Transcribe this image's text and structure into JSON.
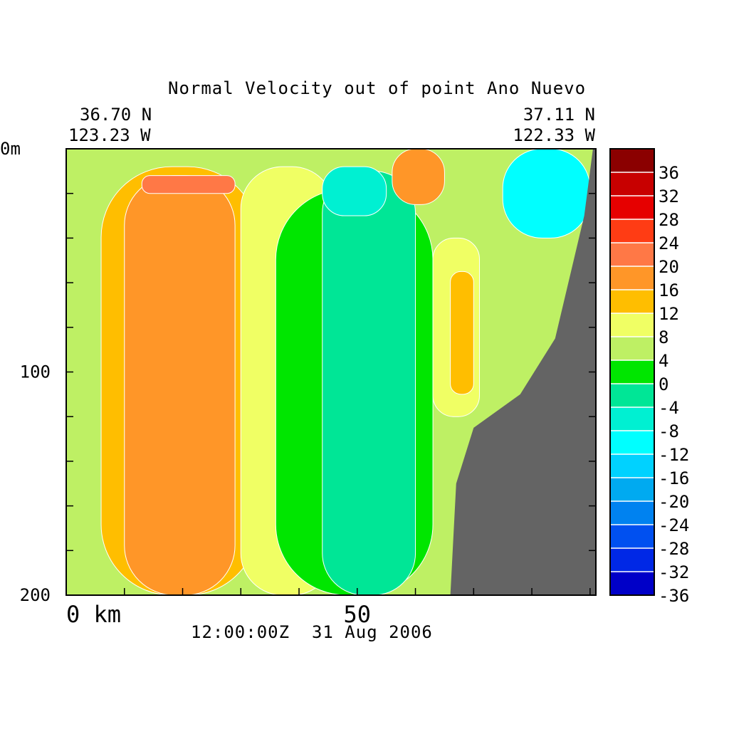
{
  "chart_data": {
    "type": "heatmap",
    "title": "Normal Velocity out of point Ano Nuevo",
    "endpoints": {
      "left": {
        "lat": "36.70 N",
        "lon": "123.23 W"
      },
      "right": {
        "lat": "37.11 N",
        "lon": "122.33 W"
      }
    },
    "timestamp": "12:00:00Z  31 Aug 2006",
    "x_axis": {
      "range": [
        0,
        91
      ],
      "ticks": [
        {
          "value": 0,
          "label": "0 km"
        },
        {
          "value": 50,
          "label": "50"
        }
      ],
      "minor_tick_step": 10
    },
    "y_axis": {
      "range": [
        0,
        200
      ],
      "inverted": true,
      "ticks": [
        {
          "value": 0,
          "label": "0m"
        },
        {
          "value": 100,
          "label": "100"
        },
        {
          "value": 200,
          "label": "200"
        }
      ],
      "minor_tick_step": 20
    },
    "colorbar": {
      "levels": [
        "36",
        "32",
        "28",
        "24",
        "20",
        "16",
        "12",
        "8",
        "4",
        "0",
        "-4",
        "-8",
        "-12",
        "-16",
        "-20",
        "-24",
        "-28",
        "-32",
        "-36"
      ],
      "colors": [
        "#8b0000",
        "#c80000",
        "#e60000",
        "#ff3c14",
        "#ff7846",
        "#ff9628",
        "#ffbe00",
        "#f0ff64",
        "#bef064",
        "#00e600",
        "#00e696",
        "#00f0d2",
        "#00ffff",
        "#00d2ff",
        "#00aaf0",
        "#0082f0",
        "#0050f0",
        "#0028e6",
        "#0000c8"
      ]
    },
    "bathymetry_color": "#646464",
    "velocity_fields": [
      {
        "level": "4 to 8",
        "value": 6,
        "approx_km": [
          0,
          91
        ],
        "approx_depth_m": [
          0,
          200
        ]
      },
      {
        "level": "12 to 16",
        "value": 14,
        "approx_km": [
          6,
          33
        ],
        "approx_depth_m": [
          8,
          200
        ]
      },
      {
        "level": "16 to 20",
        "value": 18,
        "approx_km": [
          10,
          29
        ],
        "approx_depth_m": [
          12,
          200
        ]
      },
      {
        "level": "20 to 24",
        "value": 22,
        "approx_km": [
          13,
          29
        ],
        "approx_depth_m": [
          12,
          20
        ]
      },
      {
        "level": "8 to 12",
        "value": 10,
        "approx_km": [
          30,
          46
        ],
        "approx_depth_m": [
          8,
          200
        ]
      },
      {
        "level": "0 to 4",
        "value": 2,
        "approx_km": [
          36,
          63
        ],
        "approx_depth_m": [
          18,
          200
        ]
      },
      {
        "level": "-4 to 0",
        "value": -2,
        "approx_km": [
          44,
          60
        ],
        "approx_depth_m": [
          10,
          200
        ]
      },
      {
        "level": "-8 to -4",
        "value": -6,
        "approx_km": [
          44,
          55
        ],
        "approx_depth_m": [
          8,
          30
        ]
      },
      {
        "level": "16 to 20",
        "value": 18,
        "approx_km": [
          56,
          65
        ],
        "approx_depth_m": [
          0,
          25
        ]
      },
      {
        "level": "8 to 12",
        "value": 10,
        "approx_km": [
          63,
          71
        ],
        "approx_depth_m": [
          40,
          120
        ]
      },
      {
        "level": "12 to 16",
        "value": 14,
        "approx_km": [
          66,
          70
        ],
        "approx_depth_m": [
          55,
          110
        ]
      },
      {
        "level": "-12 to -8",
        "value": -10,
        "approx_km": [
          75,
          90
        ],
        "approx_depth_m": [
          0,
          40
        ]
      }
    ]
  }
}
